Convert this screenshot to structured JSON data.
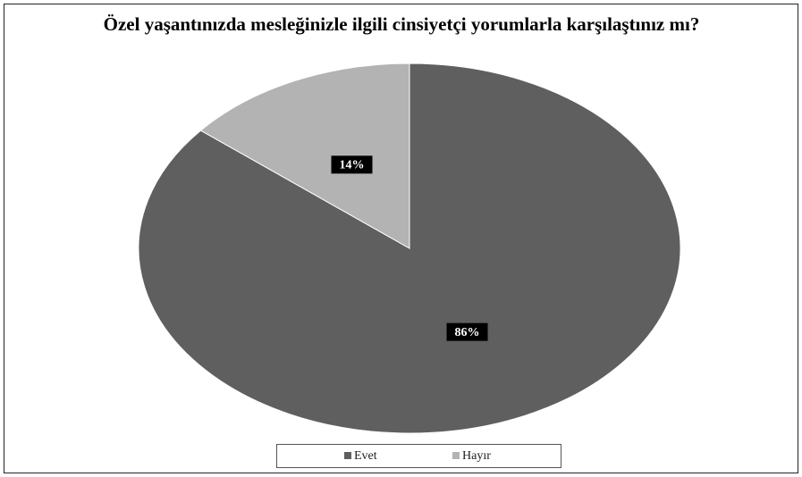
{
  "chart_data": {
    "type": "pie",
    "title": "Özel yaşantınızda mesleğinizle ilgili cinsiyetçi yorumlarla karşılaştınız mı?",
    "categories": [
      "Evet",
      "Hayır"
    ],
    "values": [
      86,
      14
    ],
    "value_labels": [
      "86%",
      "14%"
    ],
    "colors": [
      "#5f5f5f",
      "#b3b3b3"
    ],
    "legend": "bottom"
  }
}
